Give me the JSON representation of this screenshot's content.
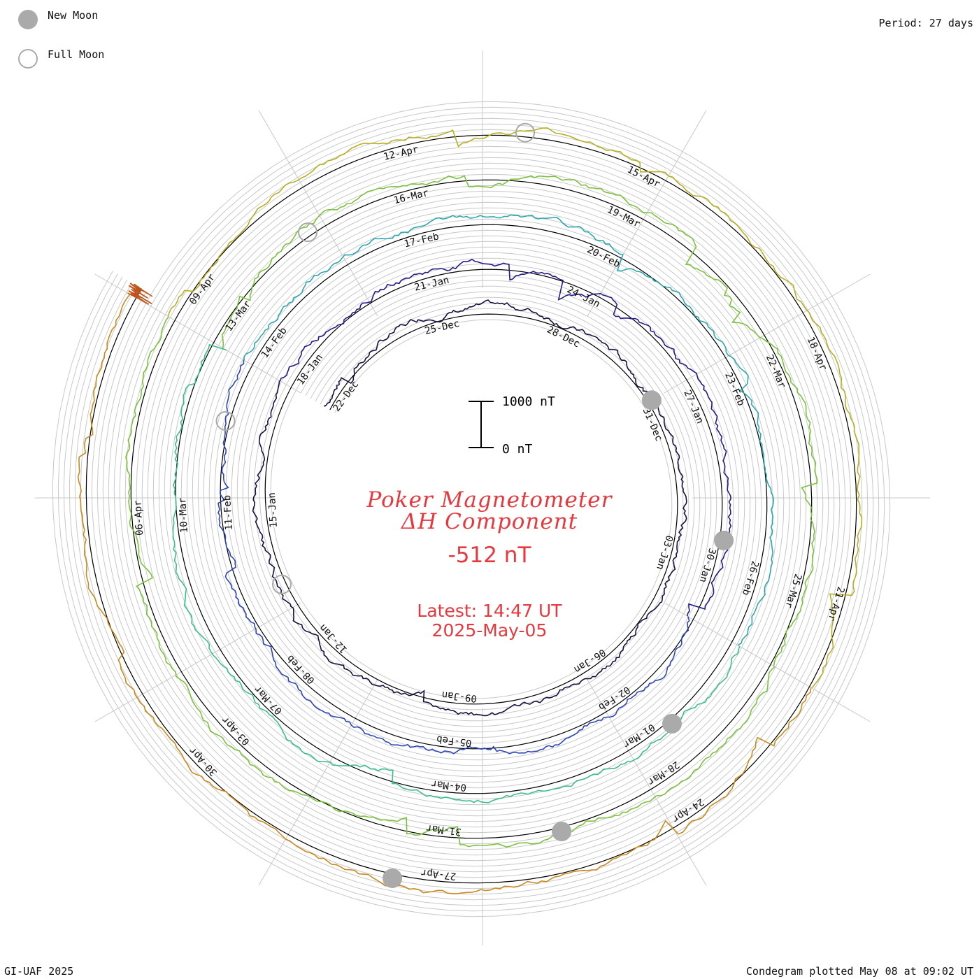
{
  "legend": {
    "new_moon": "New Moon",
    "full_moon": "Full Moon"
  },
  "header": {
    "period": "Period: 27 days"
  },
  "footer": {
    "credit": "GI-UAF 2025",
    "plotted": "Condegram plotted May 08 at 09:02 UT"
  },
  "title": {
    "line1": "Poker Magnetometer",
    "line2": "ΔH Component",
    "value": "-512 nT",
    "latest_label": "Latest: 14:47 UT",
    "latest_date": "2025-May-05"
  },
  "scale_bar": {
    "top_label": "1000 nT",
    "bottom_label": "0 nT"
  },
  "colors": {
    "title": "#e8383d",
    "grid": "#c8c8c8",
    "moon": "#aaaaaa",
    "rings": [
      "#1a1040",
      "#231c8a",
      "#2f46b8",
      "#2ea8ae",
      "#3bbf8a",
      "#7cc23c",
      "#b8b024",
      "#c98a1e",
      "#c0521a",
      "#b81a1a"
    ]
  },
  "chart_data": {
    "type": "condegram spiral line",
    "period_days": 27,
    "ring_labels": [
      [
        "22-Dec",
        "25-Dec",
        "28-Dec",
        "31-Dec",
        "03-Jan",
        "06-Jan",
        "09-Jan",
        "12-Jan",
        "15-Jan",
        "18-Jan"
      ],
      [
        "21-Jan",
        "24-Jan",
        "27-Jan",
        "30-Jan",
        "02-Feb",
        "05-Feb",
        "08-Feb",
        "11-Feb",
        "14-Feb"
      ],
      [
        "17-Feb",
        "20-Feb",
        "23-Feb",
        "26-Feb",
        "01-Mar",
        "04-Mar",
        "07-Mar",
        "10-Mar",
        "13-Mar"
      ],
      [
        "16-Mar",
        "19-Mar",
        "22-Mar",
        "25-Mar",
        "28-Mar",
        "31-Mar",
        "03-Apr",
        "06-Apr",
        "09-Apr"
      ],
      [
        "12-Apr",
        "15-Apr",
        "18-Apr",
        "21-Apr",
        "24-Apr",
        "27-Apr",
        "30-Apr"
      ]
    ],
    "new_moons": [
      "2024-12-30",
      "2025-01-29",
      "2025-02-28",
      "2025-03-29",
      "2025-04-27"
    ],
    "full_moons": [
      "2025-01-13",
      "2025-02-12",
      "2025-03-14",
      "2025-04-13"
    ],
    "latest_value_nT": -512,
    "scale_nT": [
      0,
      1000
    ]
  }
}
